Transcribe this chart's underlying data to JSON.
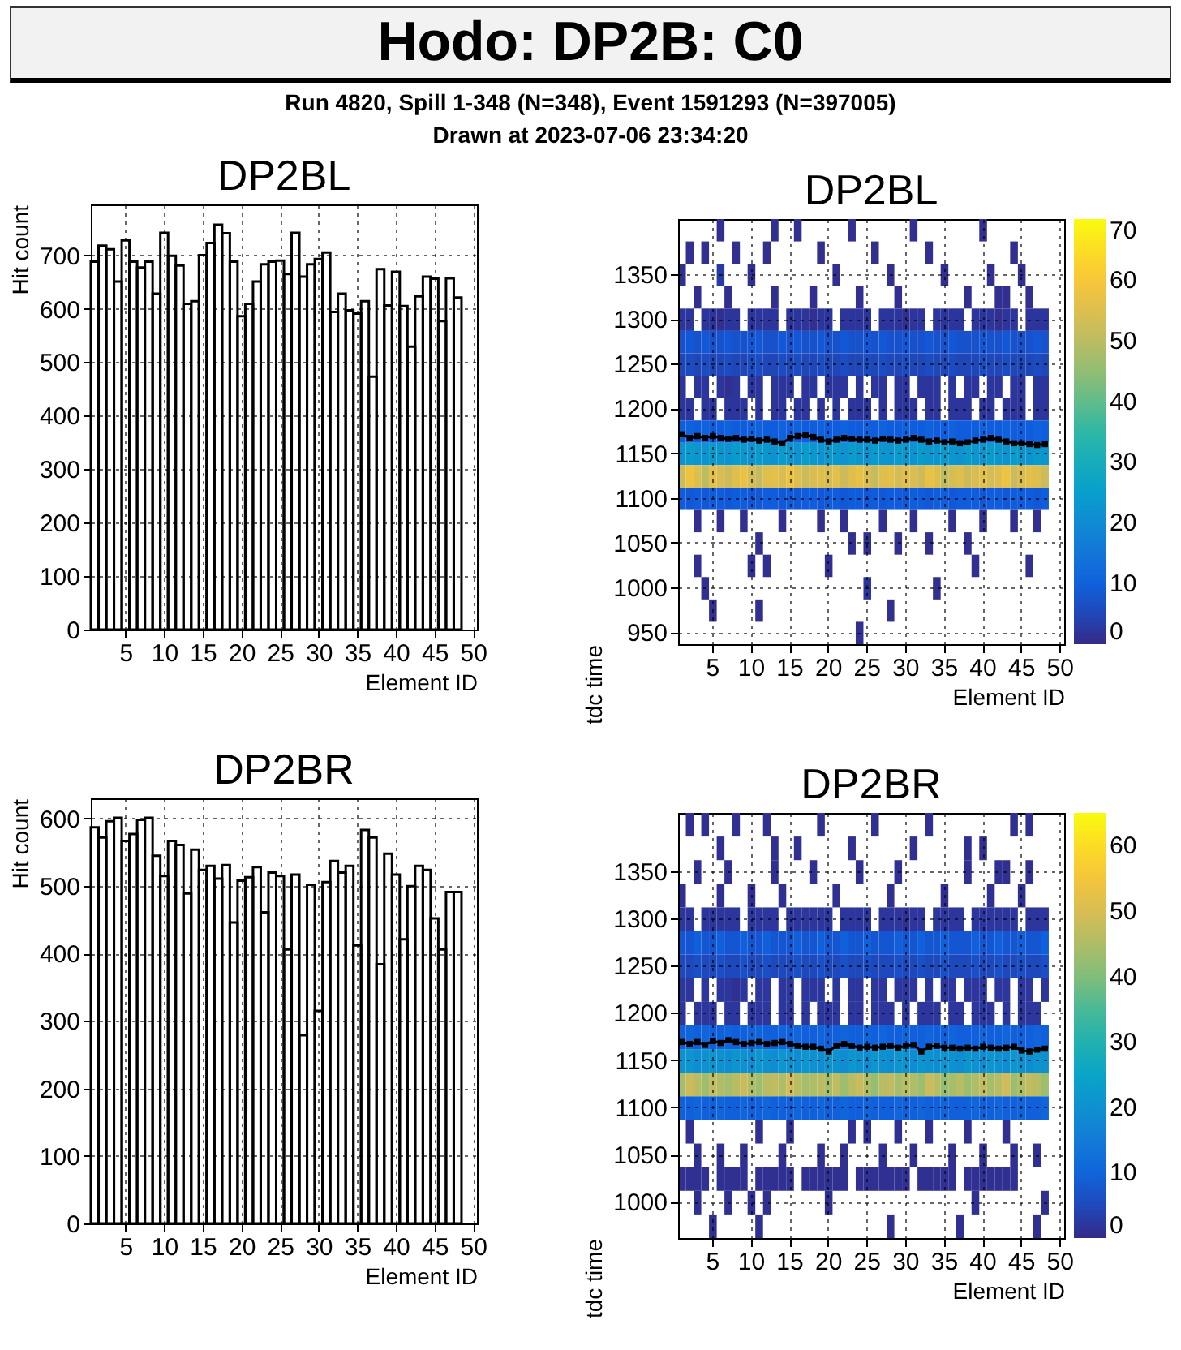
{
  "chart_data": [
    {
      "type": "other",
      "title": "Hodo: DP2B: C0",
      "subtitle": "Run 4820, Spill 1-348 (N=348), Event 1591293 (N=397005)",
      "annotations": [
        "Drawn at 2023-07-06 23:34:20"
      ]
    },
    {
      "type": "histogram",
      "title": "DP2BL",
      "xlabel": "Element ID",
      "ylabel": "Hit count",
      "color": "#000000",
      "grid": true,
      "xlim": [
        0.5,
        50.5
      ],
      "xticks": [
        5,
        10,
        15,
        20,
        25,
        30,
        35,
        40,
        45,
        50
      ],
      "ylim": [
        0,
        795
      ],
      "yticks": [
        0,
        100,
        200,
        300,
        400,
        500,
        600,
        700
      ],
      "bins": [
        0.5,
        1.5,
        2.5,
        3.5,
        4.5,
        5.5,
        6.5,
        7.5,
        8.5,
        9.5,
        10.5,
        11.5,
        12.5,
        13.5,
        14.5,
        15.5,
        16.5,
        17.5,
        18.5,
        19.5,
        20.5,
        21.5,
        22.5,
        23.5,
        24.5,
        25.5,
        26.5,
        27.5,
        28.5,
        29.5,
        30.5,
        31.5,
        32.5,
        33.5,
        34.5,
        35.5,
        36.5,
        37.5,
        38.5,
        39.5,
        40.5,
        41.5,
        42.5,
        43.5,
        44.5,
        45.5,
        46.5,
        47.5,
        48.5
      ],
      "values": [
        688,
        718,
        711,
        651,
        728,
        688,
        677,
        688,
        628,
        742,
        699,
        681,
        609,
        614,
        700,
        723,
        757,
        741,
        688,
        586,
        609,
        651,
        683,
        688,
        690,
        665,
        742,
        660,
        683,
        693,
        705,
        594,
        628,
        597,
        591,
        614,
        473,
        674,
        606,
        669,
        605,
        529,
        623,
        660,
        656,
        577,
        657,
        621
      ]
    },
    {
      "type": "heatmap",
      "title": "DP2BL",
      "xlabel": "Element ID",
      "ylabel": "tdc time",
      "grid": true,
      "clim": [
        0,
        70
      ],
      "cticks": [
        0,
        10,
        20,
        30,
        40,
        50,
        60,
        70
      ],
      "categories": [
        null,
        null,
        null,
        null,
        "5",
        null,
        null,
        null,
        null,
        "10",
        null,
        null,
        null,
        null,
        "15",
        null,
        null,
        null,
        null,
        "20",
        null,
        null,
        null,
        null,
        "25",
        null,
        null,
        null,
        null,
        "30",
        null,
        null,
        null,
        null,
        "35",
        null,
        null,
        null,
        null,
        "40",
        null,
        null,
        null,
        null,
        "45",
        null,
        null,
        null,
        null,
        "50"
      ],
      "y_categories": [
        null,
        null,
        "1350",
        null,
        "1300",
        null,
        "1250",
        null,
        "1200",
        null,
        "1150",
        null,
        "1100",
        null,
        "1050",
        null,
        "1000",
        null,
        "950"
      ],
      "cells": [
        [
          null,
          null,
          null,
          null,
          null,
          1,
          null,
          null,
          null,
          null,
          null,
          null,
          1,
          null,
          null,
          1,
          null,
          null,
          null,
          null,
          null,
          null,
          1,
          null,
          null,
          null,
          null,
          null,
          null,
          null,
          1,
          null,
          null,
          null,
          null,
          null,
          null,
          null,
          null,
          1,
          null,
          null,
          null,
          null,
          null,
          null,
          null,
          null,
          null,
          null
        ],
        [
          null,
          1,
          null,
          1,
          null,
          null,
          null,
          1,
          null,
          null,
          null,
          1,
          null,
          null,
          null,
          null,
          null,
          null,
          1,
          null,
          null,
          null,
          null,
          null,
          null,
          1,
          null,
          null,
          null,
          null,
          null,
          null,
          1,
          null,
          null,
          null,
          null,
          null,
          null,
          null,
          null,
          null,
          null,
          1,
          null,
          null,
          null,
          null,
          null,
          null
        ],
        [
          1,
          null,
          null,
          null,
          null,
          3,
          null,
          null,
          null,
          1,
          null,
          null,
          null,
          null,
          null,
          null,
          null,
          null,
          null,
          null,
          1,
          null,
          null,
          null,
          null,
          null,
          null,
          1,
          null,
          null,
          null,
          null,
          null,
          null,
          1,
          null,
          null,
          null,
          null,
          null,
          1,
          null,
          null,
          null,
          1,
          null,
          null,
          null,
          null,
          null
        ],
        [
          null,
          null,
          1,
          null,
          null,
          null,
          1,
          null,
          null,
          null,
          null,
          null,
          1,
          null,
          null,
          null,
          null,
          1,
          null,
          null,
          null,
          null,
          null,
          1,
          null,
          null,
          null,
          null,
          1,
          null,
          null,
          null,
          null,
          null,
          null,
          null,
          null,
          1,
          null,
          null,
          null,
          1,
          1,
          null,
          null,
          1,
          null,
          null,
          null,
          null
        ],
        [
          2,
          2,
          null,
          2,
          2,
          1,
          2,
          2,
          null,
          2,
          2,
          2,
          2,
          null,
          2,
          2,
          2,
          1,
          2,
          2,
          null,
          2,
          2,
          2,
          2,
          null,
          2,
          2,
          2,
          1,
          2,
          2,
          null,
          2,
          2,
          2,
          2,
          null,
          2,
          2,
          2,
          1,
          2,
          2,
          null,
          2,
          2,
          2,
          null,
          null
        ],
        [
          7,
          8,
          7,
          8,
          7,
          7,
          8,
          7,
          7,
          8,
          8,
          7,
          7,
          8,
          7,
          8,
          7,
          7,
          8,
          7,
          7,
          8,
          7,
          7,
          8,
          7,
          8,
          7,
          7,
          8,
          7,
          7,
          8,
          7,
          7,
          8,
          7,
          7,
          7,
          8,
          7,
          7,
          8,
          7,
          7,
          7,
          8,
          7,
          null,
          null
        ],
        [
          5,
          6,
          5,
          6,
          5,
          5,
          6,
          5,
          5,
          6,
          6,
          5,
          5,
          6,
          5,
          6,
          5,
          5,
          6,
          5,
          5,
          6,
          5,
          5,
          6,
          5,
          6,
          5,
          5,
          6,
          5,
          5,
          6,
          5,
          5,
          6,
          5,
          5,
          5,
          6,
          5,
          5,
          6,
          5,
          5,
          5,
          6,
          5,
          null,
          null
        ],
        [
          2,
          null,
          2,
          2,
          null,
          2,
          1,
          2,
          null,
          2,
          2,
          null,
          2,
          2,
          2,
          null,
          2,
          2,
          null,
          2,
          2,
          2,
          null,
          2,
          null,
          2,
          2,
          null,
          2,
          2,
          null,
          2,
          2,
          2,
          null,
          2,
          null,
          2,
          2,
          null,
          2,
          2,
          null,
          2,
          2,
          null,
          2,
          2,
          null,
          null
        ],
        [
          2,
          2,
          null,
          2,
          2,
          null,
          2,
          2,
          2,
          null,
          2,
          null,
          2,
          2,
          null,
          2,
          2,
          null,
          2,
          null,
          2,
          null,
          2,
          2,
          2,
          null,
          2,
          null,
          2,
          2,
          2,
          null,
          2,
          2,
          null,
          2,
          2,
          2,
          null,
          2,
          2,
          null,
          2,
          2,
          2,
          null,
          2,
          2,
          null,
          null
        ],
        [
          9,
          10,
          9,
          10,
          9,
          9,
          10,
          9,
          9,
          10,
          10,
          9,
          9,
          10,
          9,
          10,
          9,
          9,
          10,
          9,
          9,
          10,
          9,
          9,
          10,
          9,
          10,
          9,
          9,
          10,
          9,
          9,
          10,
          9,
          9,
          10,
          9,
          9,
          9,
          10,
          9,
          9,
          10,
          9,
          9,
          9,
          10,
          9,
          null,
          null
        ],
        [
          22,
          24,
          23,
          22,
          24,
          23,
          22,
          24,
          23,
          22,
          24,
          23,
          22,
          24,
          23,
          22,
          24,
          23,
          22,
          24,
          23,
          22,
          24,
          23,
          22,
          24,
          23,
          22,
          24,
          23,
          22,
          24,
          23,
          22,
          24,
          23,
          22,
          24,
          23,
          22,
          24,
          23,
          22,
          24,
          23,
          22,
          24,
          23,
          null,
          null
        ],
        [
          52,
          58,
          55,
          50,
          56,
          54,
          52,
          55,
          57,
          53,
          51,
          55,
          56,
          54,
          58,
          55,
          52,
          54,
          55,
          53,
          56,
          52,
          55,
          57,
          54,
          51,
          55,
          56,
          53,
          55,
          54,
          52,
          57,
          55,
          50,
          53,
          55,
          52,
          54,
          56,
          53,
          55,
          58,
          52,
          54,
          56,
          55,
          52,
          null,
          null
        ],
        [
          9,
          8,
          9,
          8,
          9,
          9,
          8,
          9,
          9,
          8,
          8,
          9,
          9,
          8,
          9,
          8,
          9,
          9,
          8,
          9,
          9,
          8,
          9,
          9,
          8,
          9,
          8,
          9,
          9,
          8,
          9,
          9,
          8,
          9,
          9,
          8,
          9,
          9,
          9,
          8,
          9,
          9,
          8,
          9,
          9,
          9,
          8,
          9,
          null,
          null
        ],
        [
          null,
          null,
          1,
          null,
          null,
          1,
          null,
          null,
          1,
          null,
          null,
          null,
          null,
          1,
          null,
          null,
          null,
          null,
          1,
          null,
          null,
          1,
          null,
          null,
          null,
          null,
          1,
          null,
          null,
          null,
          1,
          null,
          null,
          null,
          null,
          1,
          null,
          null,
          null,
          1,
          null,
          null,
          null,
          1,
          null,
          null,
          1,
          null,
          null,
          null
        ],
        [
          null,
          null,
          null,
          null,
          null,
          null,
          null,
          null,
          null,
          null,
          1,
          null,
          null,
          null,
          null,
          null,
          null,
          null,
          null,
          null,
          null,
          null,
          1,
          null,
          1,
          null,
          null,
          null,
          1,
          null,
          null,
          null,
          1,
          null,
          null,
          null,
          null,
          1,
          null,
          null,
          null,
          null,
          null,
          null,
          null,
          null,
          null,
          null,
          null,
          null
        ],
        [
          null,
          null,
          1,
          null,
          null,
          null,
          null,
          null,
          null,
          1,
          null,
          1,
          null,
          null,
          null,
          null,
          null,
          null,
          null,
          1,
          null,
          null,
          null,
          null,
          null,
          null,
          null,
          null,
          null,
          null,
          null,
          null,
          null,
          null,
          null,
          null,
          null,
          null,
          1,
          null,
          null,
          null,
          null,
          null,
          null,
          1,
          null,
          null,
          null,
          null
        ],
        [
          null,
          null,
          null,
          1,
          null,
          null,
          null,
          null,
          null,
          null,
          null,
          null,
          null,
          null,
          null,
          null,
          null,
          null,
          null,
          null,
          null,
          null,
          null,
          null,
          2,
          null,
          null,
          null,
          null,
          null,
          null,
          null,
          null,
          1,
          null,
          null,
          null,
          null,
          null,
          null,
          null,
          null,
          null,
          null,
          null,
          null,
          null,
          null,
          null,
          null
        ],
        [
          null,
          null,
          null,
          null,
          1,
          null,
          null,
          null,
          null,
          null,
          1,
          null,
          null,
          null,
          null,
          null,
          null,
          null,
          null,
          null,
          null,
          null,
          null,
          null,
          null,
          null,
          null,
          1,
          null,
          null,
          null,
          null,
          null,
          null,
          null,
          null,
          null,
          null,
          null,
          null,
          null,
          null,
          null,
          null,
          null,
          null,
          null,
          null,
          null,
          null
        ],
        [
          null,
          null,
          null,
          null,
          null,
          null,
          null,
          null,
          null,
          null,
          null,
          null,
          null,
          null,
          null,
          null,
          null,
          null,
          null,
          null,
          null,
          null,
          null,
          1,
          null,
          null,
          null,
          null,
          null,
          null,
          null,
          null,
          null,
          null,
          null,
          null,
          null,
          null,
          null,
          null,
          null,
          null,
          null,
          null,
          null,
          null,
          null,
          null,
          null,
          null
        ]
      ]
    },
    {
      "type": "histogram",
      "title": "DP2BR",
      "xlabel": "Element ID",
      "ylabel": "Hit count",
      "color": "#000000",
      "grid": true,
      "xlim": [
        0.5,
        50.5
      ],
      "xticks": [
        5,
        10,
        15,
        20,
        25,
        30,
        35,
        40,
        45,
        50
      ],
      "ylim": [
        0,
        630
      ],
      "yticks": [
        0,
        100,
        200,
        300,
        400,
        500,
        600
      ],
      "bins": [
        0.5,
        1.5,
        2.5,
        3.5,
        4.5,
        5.5,
        6.5,
        7.5,
        8.5,
        9.5,
        10.5,
        11.5,
        12.5,
        13.5,
        14.5,
        15.5,
        16.5,
        17.5,
        18.5,
        19.5,
        20.5,
        21.5,
        22.5,
        23.5,
        24.5,
        25.5,
        26.5,
        27.5,
        28.5,
        29.5,
        30.5,
        31.5,
        32.5,
        33.5,
        34.5,
        35.5,
        36.5,
        37.5,
        38.5,
        39.5,
        40.5,
        41.5,
        42.5,
        43.5,
        44.5,
        45.5,
        46.5,
        47.5,
        48.5
      ],
      "values": [
        587,
        572,
        596,
        601,
        567,
        577,
        598,
        601,
        545,
        515,
        567,
        561,
        489,
        554,
        524,
        530,
        511,
        531,
        446,
        508,
        513,
        528,
        461,
        520,
        515,
        406,
        517,
        279,
        502,
        315,
        506,
        537,
        520,
        530,
        412,
        583,
        572,
        384,
        548,
        517,
        421,
        500,
        530,
        524,
        452,
        406,
        491,
        491
      ]
    },
    {
      "type": "heatmap",
      "title": "DP2BR",
      "xlabel": "Element ID",
      "ylabel": "tdc time",
      "grid": true,
      "clim": [
        0,
        65
      ],
      "cticks": [
        0,
        10,
        20,
        30,
        40,
        50,
        60
      ],
      "categories": [
        null,
        null,
        null,
        null,
        "5",
        null,
        null,
        null,
        null,
        "10",
        null,
        null,
        null,
        null,
        "15",
        null,
        null,
        null,
        null,
        "20",
        null,
        null,
        null,
        null,
        "25",
        null,
        null,
        null,
        null,
        "30",
        null,
        null,
        null,
        null,
        "35",
        null,
        null,
        null,
        null,
        "40",
        null,
        null,
        null,
        null,
        "45",
        null,
        null,
        null,
        null,
        "50"
      ],
      "y_categories": [
        null,
        null,
        "1350",
        null,
        "1300",
        null,
        "1250",
        null,
        "1200",
        null,
        "1150",
        null,
        "1100",
        null,
        "1050",
        null,
        "1000",
        null
      ],
      "cells": [
        [
          null,
          1,
          null,
          1,
          null,
          null,
          null,
          1,
          null,
          null,
          null,
          1,
          null,
          null,
          null,
          null,
          null,
          null,
          1,
          null,
          null,
          null,
          null,
          null,
          null,
          1,
          null,
          null,
          null,
          null,
          null,
          null,
          1,
          null,
          null,
          null,
          null,
          null,
          null,
          null,
          null,
          null,
          null,
          1,
          null,
          1,
          null,
          null,
          null,
          null
        ],
        [
          null,
          null,
          null,
          null,
          null,
          1,
          null,
          null,
          null,
          null,
          null,
          null,
          1,
          null,
          null,
          1,
          null,
          null,
          null,
          null,
          null,
          null,
          1,
          null,
          null,
          null,
          null,
          null,
          null,
          null,
          1,
          null,
          null,
          null,
          null,
          null,
          null,
          1,
          null,
          1,
          null,
          null,
          null,
          null,
          null,
          null,
          null,
          null,
          null,
          null
        ],
        [
          null,
          null,
          1,
          null,
          null,
          null,
          1,
          null,
          null,
          null,
          null,
          null,
          1,
          null,
          null,
          null,
          null,
          1,
          null,
          null,
          null,
          null,
          null,
          1,
          null,
          null,
          null,
          null,
          1,
          null,
          null,
          null,
          null,
          null,
          null,
          null,
          null,
          1,
          null,
          null,
          null,
          1,
          1,
          null,
          null,
          1,
          null,
          null,
          null,
          null
        ],
        [
          1,
          null,
          null,
          null,
          null,
          1,
          null,
          null,
          null,
          1,
          null,
          null,
          null,
          1,
          null,
          null,
          null,
          null,
          null,
          null,
          1,
          null,
          null,
          null,
          null,
          null,
          null,
          1,
          null,
          null,
          null,
          null,
          null,
          null,
          1,
          null,
          null,
          null,
          null,
          null,
          1,
          null,
          null,
          null,
          1,
          null,
          null,
          null,
          null,
          null
        ],
        [
          2,
          2,
          null,
          2,
          2,
          2,
          2,
          2,
          null,
          2,
          2,
          2,
          2,
          null,
          2,
          2,
          2,
          2,
          2,
          2,
          null,
          2,
          2,
          2,
          2,
          null,
          2,
          2,
          2,
          1,
          2,
          2,
          null,
          2,
          2,
          2,
          2,
          null,
          2,
          2,
          2,
          2,
          2,
          2,
          null,
          2,
          2,
          2,
          null,
          null
        ],
        [
          7,
          7,
          9,
          7,
          7,
          9,
          7,
          7,
          9,
          7,
          7,
          9,
          7,
          7,
          7,
          9,
          7,
          7,
          9,
          7,
          7,
          9,
          7,
          7,
          9,
          7,
          7,
          7,
          9,
          7,
          7,
          9,
          7,
          7,
          9,
          7,
          7,
          7,
          9,
          7,
          7,
          9,
          7,
          7,
          9,
          7,
          7,
          9,
          null,
          null
        ],
        [
          5,
          5,
          6,
          5,
          5,
          6,
          5,
          5,
          6,
          5,
          5,
          6,
          5,
          5,
          5,
          6,
          5,
          5,
          6,
          5,
          5,
          6,
          5,
          5,
          6,
          5,
          5,
          5,
          6,
          5,
          5,
          6,
          5,
          5,
          6,
          5,
          5,
          5,
          6,
          5,
          5,
          6,
          5,
          5,
          6,
          5,
          5,
          6,
          null,
          null
        ],
        [
          2,
          2,
          null,
          2,
          null,
          2,
          2,
          1,
          2,
          null,
          2,
          2,
          null,
          2,
          2,
          null,
          2,
          2,
          2,
          null,
          2,
          null,
          2,
          2,
          null,
          2,
          2,
          null,
          2,
          2,
          2,
          null,
          2,
          null,
          2,
          2,
          null,
          2,
          2,
          2,
          null,
          2,
          2,
          null,
          2,
          2,
          null,
          2,
          null,
          null
        ],
        [
          2,
          null,
          2,
          2,
          2,
          null,
          2,
          2,
          null,
          2,
          2,
          2,
          null,
          2,
          2,
          null,
          2,
          null,
          2,
          2,
          2,
          null,
          2,
          2,
          null,
          2,
          2,
          2,
          null,
          2,
          null,
          2,
          2,
          2,
          null,
          2,
          2,
          null,
          2,
          2,
          2,
          null,
          2,
          null,
          2,
          2,
          2,
          null,
          null,
          null
        ],
        [
          9,
          10,
          9,
          10,
          9,
          9,
          10,
          9,
          9,
          10,
          10,
          9,
          9,
          10,
          9,
          10,
          9,
          9,
          10,
          9,
          9,
          10,
          9,
          9,
          10,
          9,
          10,
          9,
          9,
          10,
          9,
          9,
          10,
          9,
          9,
          10,
          9,
          9,
          9,
          10,
          9,
          9,
          10,
          9,
          9,
          9,
          10,
          9,
          null,
          null
        ],
        [
          20,
          21,
          19,
          20,
          21,
          20,
          19,
          21,
          20,
          19,
          21,
          20,
          19,
          21,
          20,
          19,
          21,
          20,
          19,
          21,
          20,
          19,
          21,
          20,
          19,
          21,
          20,
          19,
          21,
          20,
          19,
          21,
          20,
          19,
          21,
          20,
          19,
          21,
          20,
          19,
          21,
          20,
          19,
          21,
          20,
          19,
          21,
          20,
          null,
          null
        ],
        [
          44,
          48,
          46,
          43,
          47,
          45,
          44,
          46,
          48,
          45,
          43,
          46,
          47,
          45,
          49,
          46,
          44,
          45,
          46,
          44,
          47,
          43,
          46,
          48,
          45,
          42,
          46,
          47,
          44,
          46,
          45,
          43,
          48,
          46,
          42,
          44,
          46,
          43,
          45,
          47,
          44,
          46,
          49,
          43,
          45,
          47,
          46,
          43,
          null,
          null
        ],
        [
          9,
          9,
          10,
          9,
          9,
          10,
          9,
          9,
          10,
          9,
          9,
          10,
          9,
          9,
          9,
          10,
          9,
          9,
          10,
          9,
          9,
          10,
          9,
          9,
          10,
          9,
          9,
          9,
          10,
          9,
          9,
          10,
          9,
          9,
          10,
          9,
          9,
          9,
          10,
          9,
          9,
          10,
          9,
          9,
          10,
          9,
          9,
          10,
          null,
          null
        ],
        [
          null,
          1,
          null,
          null,
          null,
          null,
          null,
          null,
          null,
          null,
          1,
          null,
          null,
          null,
          1,
          null,
          null,
          null,
          null,
          null,
          null,
          null,
          1,
          null,
          1,
          null,
          null,
          null,
          1,
          null,
          null,
          null,
          1,
          null,
          null,
          null,
          null,
          1,
          null,
          null,
          null,
          null,
          1,
          null,
          null,
          null,
          null,
          null,
          null,
          null
        ],
        [
          null,
          null,
          1,
          null,
          null,
          1,
          null,
          null,
          1,
          null,
          null,
          null,
          null,
          1,
          null,
          null,
          null,
          null,
          1,
          null,
          null,
          1,
          null,
          null,
          null,
          null,
          1,
          null,
          null,
          null,
          1,
          null,
          null,
          null,
          null,
          1,
          null,
          null,
          null,
          1,
          null,
          null,
          null,
          1,
          null,
          null,
          1,
          null,
          null,
          null
        ],
        [
          1,
          1,
          1,
          1,
          null,
          1,
          1,
          1,
          1,
          null,
          1,
          1,
          1,
          1,
          1,
          null,
          1,
          1,
          1,
          1,
          1,
          1,
          null,
          1,
          1,
          1,
          1,
          1,
          1,
          1,
          null,
          1,
          1,
          1,
          1,
          1,
          null,
          1,
          1,
          1,
          1,
          1,
          1,
          1,
          null,
          null,
          null,
          null,
          null,
          null
        ],
        [
          null,
          null,
          1,
          null,
          null,
          null,
          1,
          null,
          null,
          1,
          null,
          1,
          null,
          null,
          null,
          null,
          null,
          null,
          null,
          1,
          null,
          null,
          null,
          null,
          null,
          null,
          null,
          null,
          null,
          null,
          null,
          null,
          null,
          null,
          null,
          null,
          null,
          null,
          1,
          null,
          null,
          null,
          null,
          null,
          null,
          null,
          null,
          1,
          null,
          null
        ],
        [
          null,
          null,
          null,
          null,
          1,
          null,
          null,
          null,
          null,
          null,
          1,
          null,
          null,
          null,
          null,
          null,
          null,
          null,
          null,
          null,
          null,
          null,
          null,
          null,
          null,
          null,
          null,
          1,
          null,
          null,
          null,
          null,
          null,
          null,
          null,
          null,
          1,
          null,
          null,
          null,
          null,
          null,
          null,
          null,
          null,
          null,
          1,
          null,
          null,
          null
        ]
      ]
    },
    {
      "type": "line",
      "tick_labels": false,
      "ylim": [
        937.5,
        1412.5
      ],
      "yticks": [
        950,
        1000,
        1050,
        1100,
        1150,
        1200,
        1250,
        1300,
        1350
      ],
      "marker": "square",
      "categories": [
        null,
        null,
        null,
        null,
        "5",
        null,
        null,
        null,
        null,
        "10",
        null,
        null,
        null,
        null,
        "15",
        null,
        null,
        null,
        null,
        "20",
        null,
        null,
        null,
        null,
        "25",
        null,
        null,
        null,
        null,
        "30",
        null,
        null,
        null,
        null,
        "35",
        null,
        null,
        null,
        null,
        "40",
        null,
        null,
        null,
        null,
        "45",
        null,
        null,
        null,
        null,
        "50"
      ],
      "series": [
        {
          "color": "#000000",
          "values": [
            1172,
            1168,
            1170,
            1168,
            1170,
            1168,
            1167,
            1168,
            1166,
            1167,
            1165,
            1166,
            1164,
            1162,
            1168,
            1170,
            1171,
            1169,
            1166,
            1164,
            1166,
            1168,
            1167,
            1166,
            1166,
            1165,
            1167,
            1166,
            1165,
            1166,
            1168,
            1166,
            1164,
            1165,
            1163,
            1164,
            1162,
            1163,
            1165,
            1166,
            1168,
            1166,
            1164,
            1162,
            1162,
            1161,
            1160,
            1161,
            null,
            null
          ]
        }
      ]
    },
    {
      "type": "line",
      "tick_labels": false,
      "ylim": [
        962.5,
        1412.5
      ],
      "yticks": [
        1000,
        1050,
        1100,
        1150,
        1200,
        1250,
        1300,
        1350
      ],
      "marker": "square",
      "categories": [
        null,
        null,
        null,
        null,
        "5",
        null,
        null,
        null,
        null,
        "10",
        null,
        null,
        null,
        null,
        "15",
        null,
        null,
        null,
        null,
        "20",
        null,
        null,
        null,
        null,
        "25",
        null,
        null,
        null,
        null,
        "30",
        null,
        null,
        null,
        null,
        "35",
        null,
        null,
        null,
        null,
        "40",
        null,
        null,
        null,
        null,
        "45",
        null,
        null,
        null,
        null,
        "50"
      ],
      "series": [
        {
          "color": "#000000",
          "values": [
            1170,
            1168,
            1170,
            1167,
            1171,
            1169,
            1172,
            1170,
            1168,
            1169,
            1170,
            1168,
            1169,
            1170,
            1168,
            1166,
            1165,
            1165,
            1163,
            1160,
            1166,
            1168,
            1166,
            1164,
            1165,
            1164,
            1165,
            1166,
            1164,
            1166,
            1167,
            1160,
            1165,
            1166,
            1164,
            1164,
            1163,
            1164,
            1163,
            1165,
            1164,
            1163,
            1164,
            1165,
            1161,
            1160,
            1162,
            1163,
            null,
            null
          ]
        }
      ]
    }
  ]
}
